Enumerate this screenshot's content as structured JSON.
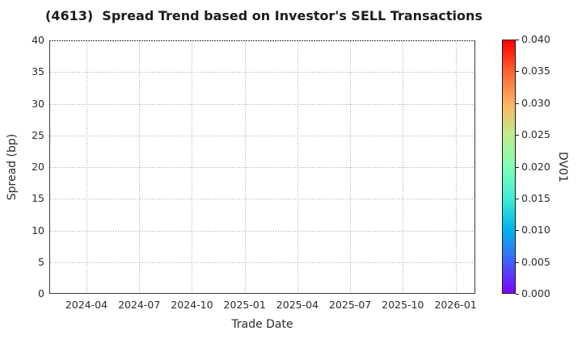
{
  "header": {
    "title": "(4613)  Spread Trend based on Investor's SELL Transactions"
  },
  "chart_data": {
    "type": "scatter",
    "title": "(4613)  Spread Trend based on Investor's SELL Transactions",
    "xlabel": "Trade Date",
    "ylabel": "Spread (bp)",
    "x_tick_labels": [
      "2024-04",
      "2024-07",
      "2024-10",
      "2025-01",
      "2025-04",
      "2025-07",
      "2025-10",
      "2026-01"
    ],
    "y_tick_labels": [
      "0",
      "5",
      "10",
      "15",
      "20",
      "25",
      "30",
      "35",
      "40"
    ],
    "ylim": [
      0,
      40
    ],
    "grid": true,
    "points": [],
    "colorbar": {
      "label": "DV01",
      "tick_labels": [
        "0.000",
        "0.005",
        "0.010",
        "0.015",
        "0.020",
        "0.025",
        "0.030",
        "0.035",
        "0.040"
      ],
      "range": [
        0.0,
        0.04
      ],
      "colormap": "rainbow",
      "gradient_stops_low_to_high": [
        "#8000ff",
        "#4062fa",
        "#00b4ec",
        "#40ecd4",
        "#80ffb4",
        "#bfec8e",
        "#ffb462",
        "#ff6232",
        "#ff0000"
      ]
    },
    "colors": {
      "background": "#ffffff",
      "spine": "#3a3a3a",
      "grid": "#a6a6a6",
      "text": "#2b2b2b"
    }
  }
}
